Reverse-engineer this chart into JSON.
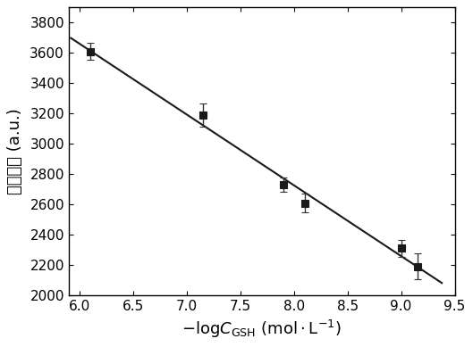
{
  "x": [
    6.1,
    7.15,
    7.9,
    8.1,
    9.0,
    9.15
  ],
  "y": [
    3610,
    3190,
    2730,
    2610,
    2310,
    2190
  ],
  "yerr": [
    55,
    75,
    45,
    60,
    55,
    85
  ],
  "xlim": [
    5.9,
    9.5
  ],
  "ylim": [
    2000,
    3900
  ],
  "xticks": [
    6.0,
    6.5,
    7.0,
    7.5,
    8.0,
    8.5,
    9.0,
    9.5
  ],
  "yticks": [
    2000,
    2200,
    2400,
    2600,
    2800,
    3000,
    3200,
    3400,
    3600,
    3800
  ],
  "ylabel": "荧光强度 (a.u.)",
  "marker_color": "#1a1a1a",
  "marker_size": 6,
  "line_color": "#1a1a1a",
  "line_width": 1.5,
  "ecolor": "#333333",
  "capsize": 3,
  "background_color": "#ffffff",
  "tick_direction": "in"
}
